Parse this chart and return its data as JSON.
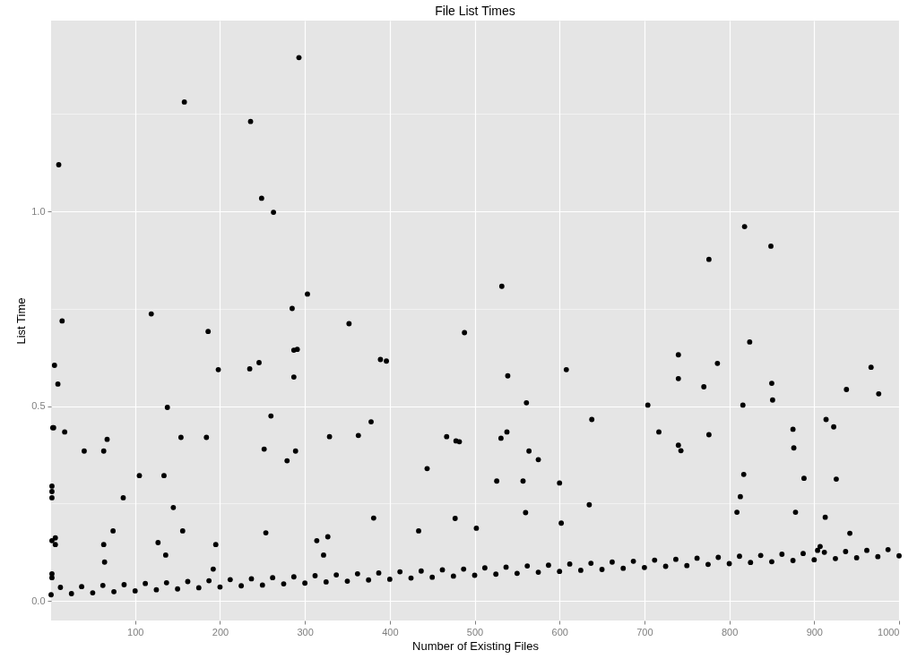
{
  "chart_data": {
    "type": "scatter",
    "title": "File List Times",
    "xlabel": "Number of Existing Files",
    "ylabel": "List Time",
    "xlim": [
      1,
      1000
    ],
    "ylim": [
      -0.05,
      1.49
    ],
    "xticks": [
      100,
      200,
      300,
      400,
      500,
      600,
      700,
      800,
      900,
      1000
    ],
    "yticks": [
      {
        "value": 0,
        "label": "0.0"
      },
      {
        "value": 0.25,
        "label": null
      },
      {
        "value": 0.5,
        "label": "0.5"
      },
      {
        "value": 0.75,
        "label": null
      },
      {
        "value": 1,
        "label": "1.0"
      },
      {
        "value": 1.25,
        "label": null
      }
    ],
    "grid": true,
    "marker": "circle",
    "series": [
      {
        "color": "#000000",
        "x": [
          10,
          5,
          9,
          14,
          4,
          3,
          17,
          2,
          2,
          2,
          6,
          2,
          6,
          2,
          2,
          40,
          63,
          67,
          63,
          64,
          74,
          86,
          105,
          119,
          127,
          134,
          136,
          138,
          145,
          156,
          158,
          154,
          186,
          184,
          192,
          195,
          198,
          236,
          235,
          246,
          249,
          252,
          254,
          260,
          263,
          279,
          285,
          287,
          287,
          291,
          289,
          293,
          303,
          314,
          322,
          327,
          329,
          352,
          363,
          378,
          381,
          389,
          396,
          467,
          434,
          444,
          478,
          482,
          477,
          488,
          502,
          526,
          532,
          531,
          538,
          539,
          560,
          561,
          564,
          575,
          557,
          600,
          602,
          608,
          638,
          635,
          704,
          717,
          740,
          740,
          740,
          743,
          770,
          776,
          776,
          786,
          809,
          813,
          816,
          818,
          817,
          824,
          849,
          850,
          851,
          875,
          876,
          878,
          888,
          904,
          907,
          913,
          914,
          923,
          926,
          938,
          942,
          967,
          976,
          1,
          25,
          50,
          75,
          100,
          125,
          150,
          175,
          200,
          225,
          250,
          275,
          300,
          325,
          350,
          375,
          400,
          425,
          450,
          475,
          500,
          525,
          550,
          575,
          600,
          625,
          650,
          675,
          700,
          725,
          750,
          775,
          800,
          825,
          850,
          875,
          900,
          925,
          950,
          975,
          1000,
          12,
          37,
          62,
          87,
          112,
          137,
          162,
          187,
          212,
          237,
          262,
          287,
          312,
          337,
          362,
          387,
          412,
          437,
          462,
          487,
          512,
          537,
          562,
          587,
          612,
          637,
          662,
          687,
          712,
          737,
          762,
          787,
          812,
          837,
          862,
          887,
          912,
          937,
          962,
          987
        ],
        "values": [
          1.12,
          0.605,
          0.557,
          0.719,
          0.445,
          0.445,
          0.434,
          0.295,
          0.281,
          0.265,
          0.145,
          0.155,
          0.162,
          0.07,
          0.06,
          0.385,
          0.385,
          0.415,
          0.145,
          0.1,
          0.18,
          0.265,
          0.322,
          0.737,
          0.15,
          0.322,
          0.118,
          0.497,
          0.24,
          0.18,
          1.281,
          0.42,
          0.692,
          0.42,
          0.082,
          0.145,
          0.594,
          1.231,
          0.596,
          0.612,
          1.034,
          0.39,
          0.175,
          0.475,
          0.998,
          0.36,
          0.751,
          0.575,
          0.644,
          0.646,
          0.385,
          1.395,
          0.788,
          0.155,
          0.118,
          0.165,
          0.422,
          0.712,
          0.425,
          0.46,
          0.213,
          0.62,
          0.616,
          0.422,
          0.18,
          0.34,
          0.411,
          0.409,
          0.212,
          0.689,
          0.187,
          0.308,
          0.808,
          0.418,
          0.434,
          0.578,
          0.227,
          0.509,
          0.385,
          0.363,
          0.308,
          0.303,
          0.2,
          0.594,
          0.466,
          0.247,
          0.503,
          0.434,
          0.632,
          0.571,
          0.4,
          0.386,
          0.55,
          0.877,
          0.427,
          0.61,
          0.228,
          0.268,
          0.503,
          0.961,
          0.325,
          0.665,
          0.911,
          0.559,
          0.516,
          0.441,
          0.393,
          0.228,
          0.315,
          0.13,
          0.14,
          0.215,
          0.466,
          0.447,
          0.313,
          0.543,
          0.174,
          0.6,
          0.532,
          0.016,
          0.019,
          0.021,
          0.024,
          0.026,
          0.029,
          0.031,
          0.034,
          0.036,
          0.039,
          0.041,
          0.044,
          0.046,
          0.049,
          0.051,
          0.054,
          0.056,
          0.059,
          0.061,
          0.064,
          0.066,
          0.069,
          0.071,
          0.074,
          0.076,
          0.079,
          0.081,
          0.084,
          0.086,
          0.089,
          0.091,
          0.094,
          0.096,
          0.099,
          0.101,
          0.104,
          0.106,
          0.109,
          0.111,
          0.114,
          0.116,
          0.035,
          0.037,
          0.04,
          0.042,
          0.045,
          0.047,
          0.05,
          0.052,
          0.055,
          0.057,
          0.06,
          0.062,
          0.065,
          0.067,
          0.07,
          0.072,
          0.075,
          0.077,
          0.08,
          0.082,
          0.085,
          0.087,
          0.09,
          0.092,
          0.095,
          0.097,
          0.1,
          0.102,
          0.105,
          0.107,
          0.11,
          0.112,
          0.115,
          0.117,
          0.12,
          0.122,
          0.125,
          0.127,
          0.13,
          0.132
        ]
      }
    ]
  }
}
